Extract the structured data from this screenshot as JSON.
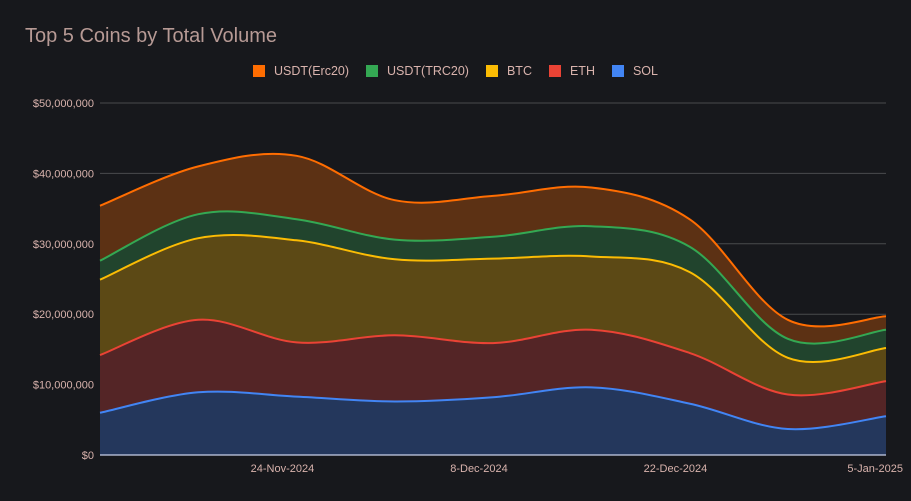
{
  "chart_data": {
    "type": "area",
    "stacked": true,
    "title": "Top 5 Coins by Total Volume",
    "xlabel": "",
    "ylabel": "",
    "ylim": [
      0,
      50000000
    ],
    "y_ticks": [
      "$0",
      "$10,000,000",
      "$20,000,000",
      "$30,000,000",
      "$40,000,000",
      "$50,000,000"
    ],
    "y_tick_values": [
      0,
      10000000,
      20000000,
      30000000,
      40000000,
      50000000
    ],
    "x_tick_labels": [
      "24-Nov-2024",
      "8-Dec-2024",
      "22-Dec-2024",
      "5-Jan-2025"
    ],
    "x_tick_days": [
      13,
      27,
      41,
      55
    ],
    "x_range_days": [
      0,
      56
    ],
    "grid": true,
    "legend_position": "top",
    "x": [
      "11-Nov-2024",
      "18-Nov-2024",
      "25-Nov-2024",
      "2-Dec-2024",
      "9-Dec-2024",
      "16-Dec-2024",
      "23-Dec-2024",
      "30-Dec-2024",
      "6-Jan-2025"
    ],
    "x_days": [
      0,
      7,
      14,
      21,
      28,
      35,
      42,
      49,
      56
    ],
    "series": [
      {
        "name": "SOL",
        "color": "#4285f4",
        "fill": "#24375c",
        "values": [
          6000000,
          8900000,
          8300000,
          7600000,
          8200000,
          9600000,
          7300000,
          3700000,
          5500000
        ]
      },
      {
        "name": "ETH",
        "color": "#ea4335",
        "fill": "#542526",
        "values": [
          8200000,
          10300000,
          7700000,
          9400000,
          7700000,
          8200000,
          7200000,
          4900000,
          5000000
        ]
      },
      {
        "name": "BTC",
        "color": "#fbbc04",
        "fill": "#5c4915",
        "values": [
          10700000,
          11600000,
          14500000,
          10800000,
          12000000,
          10400000,
          11500000,
          5200000,
          4700000
        ]
      },
      {
        "name": "USDT(TRC20)",
        "color": "#34a853",
        "fill": "#21442d",
        "values": [
          2700000,
          3400000,
          3000000,
          2800000,
          3100000,
          4300000,
          3600000,
          2700000,
          2600000
        ]
      },
      {
        "name": "USDT(Erc20)",
        "color": "#ff6d01",
        "fill": "#5c3114",
        "values": [
          7800000,
          6800000,
          9000000,
          5600000,
          5800000,
          5500000,
          3900000,
          2700000,
          1900000
        ]
      }
    ],
    "legend": [
      "USDT(Erc20)",
      "USDT(TRC20)",
      "BTC",
      "ETH",
      "SOL"
    ]
  }
}
